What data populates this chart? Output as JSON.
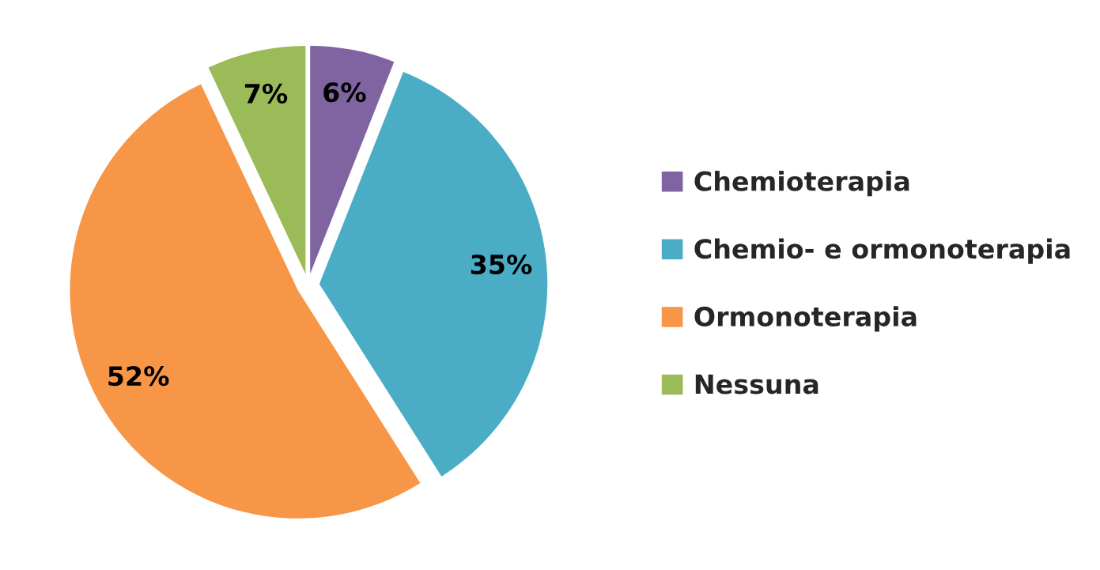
{
  "chart_data": {
    "type": "pie",
    "categories": [
      "Chemioterapia",
      "Chemio- e ormonoterapia",
      "Ormonoterapia",
      "Nessuna"
    ],
    "values": [
      6,
      35,
      52,
      7
    ],
    "colors": [
      "#8064a2",
      "#4bacc6",
      "#f79646",
      "#9bbb59"
    ],
    "value_labels": [
      "6%",
      "35%",
      "52%",
      "7%"
    ],
    "legend": "right"
  }
}
